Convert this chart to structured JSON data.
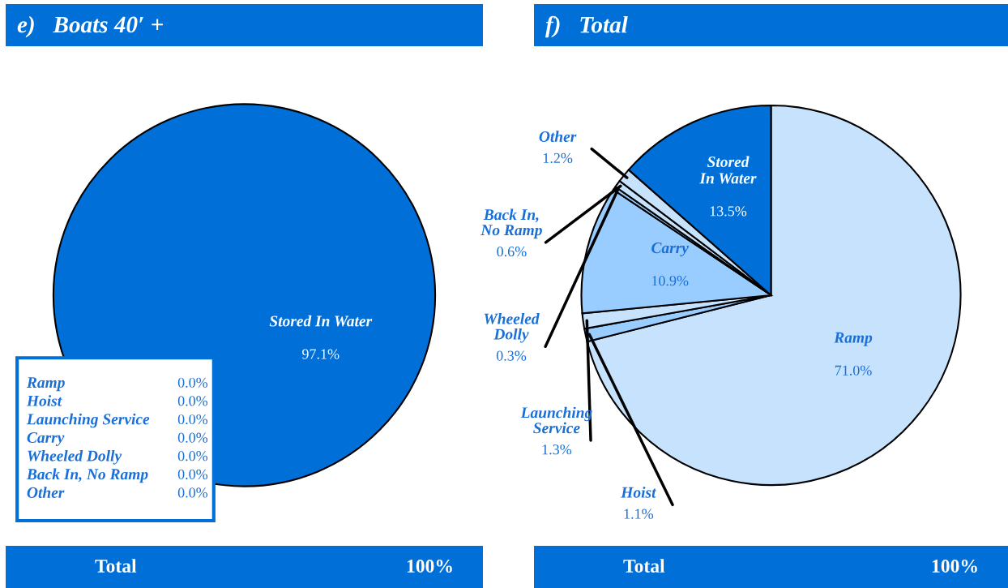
{
  "chart_data": [
    {
      "type": "pie",
      "title": "e)   Boats 40′ +",
      "categories": [
        "Ramp",
        "Hoist",
        "Launching Service",
        "Carry",
        "Wheeled Dolly",
        "Back In, No Ramp",
        "Other",
        "Stored In Water"
      ],
      "values": [
        0.0,
        0.0,
        0.0,
        0.0,
        0.0,
        0.0,
        0.0,
        97.1
      ],
      "colors": [
        "#c6e2fc",
        "#99ccff",
        "#99ccff",
        "#99ccff",
        "#99ccff",
        "#c6e2fc",
        "#c6e2fc",
        "#0070d8"
      ],
      "value_labels": [
        "0.0%",
        "0.0%",
        "0.0%",
        "0.0%",
        "0.0%",
        "0.0%",
        "0.0%",
        "97.1%"
      ],
      "annotations": [
        "Total",
        "100%"
      ]
    },
    {
      "type": "pie",
      "title": "f)   Total",
      "categories": [
        "Ramp",
        "Hoist",
        "Launching Service",
        "Carry",
        "Wheeled Dolly",
        "Back In, No Ramp",
        "Other",
        "Stored In Water"
      ],
      "values": [
        71.0,
        1.1,
        1.3,
        10.9,
        0.3,
        0.6,
        1.2,
        13.5
      ],
      "colors": [
        "#c6e2fc",
        "#99ccff",
        "#c6e2fc",
        "#99ccff",
        "#99ccff",
        "#c6e2fc",
        "#c6e2fc",
        "#0070d8"
      ],
      "value_labels": [
        "71.0%",
        "1.1%",
        "1.3%",
        "10.9%",
        "0.3%",
        "0.6%",
        "1.2%",
        "13.5%"
      ],
      "annotations": [
        "Total",
        "100%"
      ]
    }
  ]
}
